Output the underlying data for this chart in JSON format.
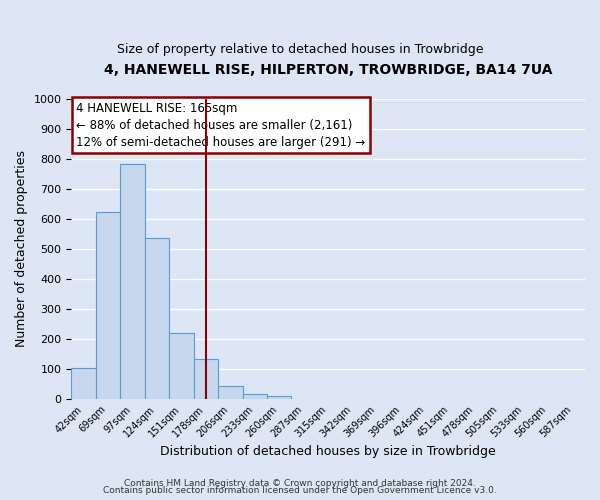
{
  "title": "4, HANEWELL RISE, HILPERTON, TROWBRIDGE, BA14 7UA",
  "subtitle": "Size of property relative to detached houses in Trowbridge",
  "xlabel": "Distribution of detached houses by size in Trowbridge",
  "ylabel": "Number of detached properties",
  "bar_values": [
    103,
    622,
    782,
    537,
    220,
    133,
    45,
    18,
    10,
    0,
    0,
    0,
    0,
    0,
    0,
    0,
    0,
    0,
    0,
    0
  ],
  "bin_labels": [
    "42sqm",
    "69sqm",
    "97sqm",
    "124sqm",
    "151sqm",
    "178sqm",
    "206sqm",
    "233sqm",
    "260sqm",
    "287sqm",
    "315sqm",
    "342sqm",
    "369sqm",
    "396sqm",
    "424sqm",
    "451sqm",
    "478sqm",
    "505sqm",
    "533sqm",
    "560sqm",
    "587sqm"
  ],
  "bar_color": "#c5d8ee",
  "bar_edge_color": "#5b9bd5",
  "vline_color": "#8b0000",
  "annotation_line1": "4 HANEWELL RISE: 165sqm",
  "annotation_line2": "← 88% of detached houses are smaller (2,161)",
  "annotation_line3": "12% of semi-detached houses are larger (291) →",
  "ylim": [
    0,
    1000
  ],
  "yticks": [
    0,
    100,
    200,
    300,
    400,
    500,
    600,
    700,
    800,
    900,
    1000
  ],
  "footnote1": "Contains HM Land Registry data © Crown copyright and database right 2024.",
  "footnote2": "Contains public sector information licensed under the Open Government Licence v3.0.",
  "background_color": "#dce6f5",
  "plot_bg_color": "#dce6f5",
  "grid_color": "#ffffff",
  "vline_bin_index": 5.0
}
